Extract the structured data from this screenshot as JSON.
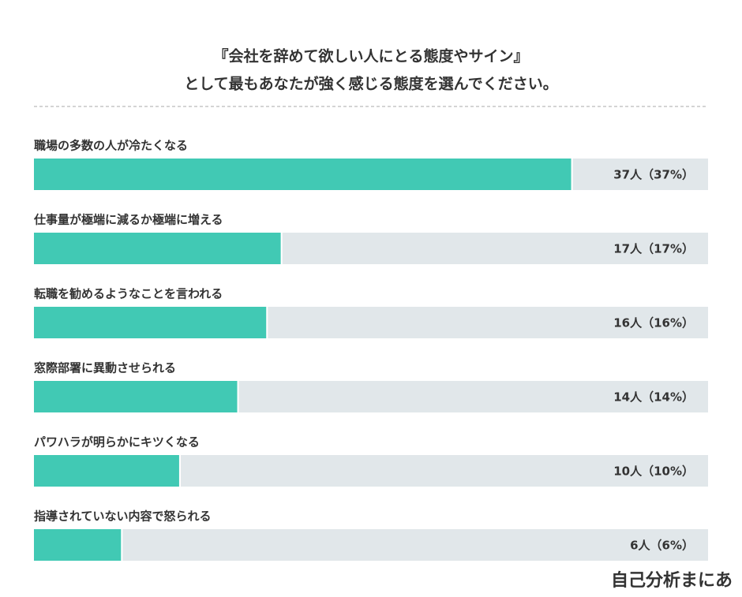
{
  "chart_data": {
    "type": "hbar",
    "title": [
      "『会社を辞めて欲しい人にとる態度やサイン』",
      "として最もあなたが強く感じる態度を選んでください。"
    ],
    "categories": [
      "職場の多数の人が冷たくなる",
      "仕事量が極端に減るか極端に増える",
      "転職を勧めるようなことを言われる",
      "窓際部署に異動させられる",
      "パワハラが明らかにキツくなる",
      "指導されていない内容で怒られる"
    ],
    "values": [
      37,
      17,
      16,
      14,
      10,
      6
    ],
    "value_labels": [
      "37人（37%）",
      "17人（17%）",
      "16人（16%）",
      "14人（14%）",
      "10人（10%）",
      "6人（6%）"
    ],
    "color": "#41c9b4",
    "track_color": "#e1e7ea"
  },
  "brand": "自己分析まにあ"
}
